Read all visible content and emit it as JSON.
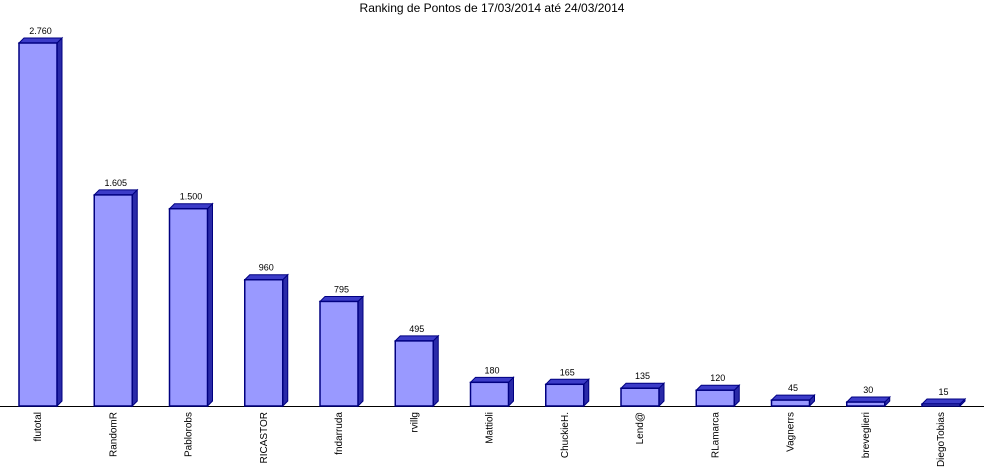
{
  "chart_data": {
    "type": "bar",
    "title": "Ranking de Pontos de 17/03/2014 até 24/03/2014",
    "categories": [
      "flutotal",
      "RandomR",
      "Pablorobs",
      "RICASTOR",
      "fndarruda",
      "rvillg",
      "Mattioli",
      "ChuckieH.",
      "Lend@",
      "RLamarca",
      "Vagnerrs",
      "breveglieri",
      "DiegoTobias"
    ],
    "values": [
      2760,
      1605,
      1500,
      960,
      795,
      495,
      180,
      165,
      135,
      120,
      45,
      30,
      15
    ],
    "value_labels": [
      "2.760",
      "1.605",
      "1.500",
      "960",
      "795",
      "495",
      "180",
      "165",
      "135",
      "120",
      "45",
      "30",
      "15"
    ],
    "color": "#9999ff"
  }
}
